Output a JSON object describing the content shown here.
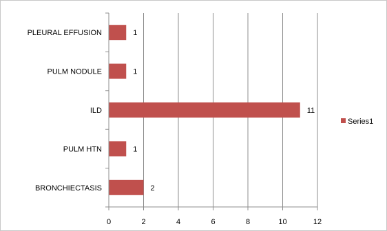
{
  "chart_data": {
    "type": "bar",
    "orientation": "horizontal",
    "categories": [
      "PLEURAL EFFUSION",
      "PULM NODULE",
      "ILD",
      "PULM HTN",
      "BRONCHIECTASIS"
    ],
    "series": [
      {
        "name": "Series1",
        "values": [
          1,
          1,
          11,
          1,
          2
        ],
        "color": "#c0504d"
      }
    ],
    "xlim": [
      0,
      12
    ],
    "xticks": [
      0,
      2,
      4,
      6,
      8,
      10,
      12
    ],
    "tick_labels": [
      "0",
      "2",
      "4",
      "6",
      "8",
      "10",
      "12"
    ],
    "data_labels": [
      "1",
      "1",
      "11",
      "1",
      "2"
    ],
    "grid": true,
    "legend": "right",
    "title": "",
    "xlabel": "",
    "ylabel": ""
  }
}
